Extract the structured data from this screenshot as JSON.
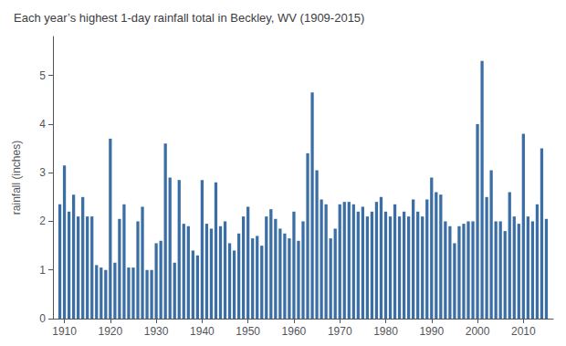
{
  "chart_data": {
    "type": "bar",
    "title": "Each year’s highest 1-day rainfall total in Beckley, WV (1909-2015)",
    "ylabel": "rainfall (inches)",
    "x": [
      1909,
      1910,
      1911,
      1912,
      1913,
      1914,
      1915,
      1916,
      1917,
      1918,
      1919,
      1920,
      1921,
      1922,
      1923,
      1924,
      1925,
      1926,
      1927,
      1928,
      1929,
      1930,
      1931,
      1932,
      1933,
      1934,
      1935,
      1936,
      1937,
      1938,
      1939,
      1940,
      1941,
      1942,
      1943,
      1944,
      1945,
      1946,
      1947,
      1948,
      1949,
      1950,
      1951,
      1952,
      1953,
      1954,
      1955,
      1956,
      1957,
      1958,
      1959,
      1960,
      1961,
      1962,
      1963,
      1964,
      1965,
      1966,
      1967,
      1968,
      1969,
      1970,
      1971,
      1972,
      1973,
      1974,
      1975,
      1976,
      1977,
      1978,
      1979,
      1980,
      1981,
      1982,
      1983,
      1984,
      1985,
      1986,
      1987,
      1988,
      1989,
      1990,
      1991,
      1992,
      1993,
      1994,
      1995,
      1996,
      1997,
      1998,
      1999,
      2000,
      2001,
      2002,
      2003,
      2004,
      2005,
      2006,
      2007,
      2008,
      2009,
      2010,
      2011,
      2012,
      2013,
      2014,
      2015
    ],
    "values": [
      2.35,
      3.15,
      2.2,
      2.55,
      2.1,
      2.5,
      2.1,
      2.1,
      1.1,
      1.05,
      1.0,
      3.7,
      1.15,
      2.05,
      2.35,
      1.05,
      1.05,
      2.0,
      2.3,
      1.0,
      1.0,
      1.55,
      1.6,
      3.6,
      2.9,
      1.15,
      2.85,
      1.95,
      1.9,
      1.4,
      1.3,
      2.85,
      1.95,
      1.85,
      2.8,
      1.9,
      2.0,
      1.55,
      1.4,
      1.75,
      2.1,
      2.3,
      1.65,
      1.7,
      1.5,
      2.1,
      2.25,
      2.05,
      1.85,
      1.75,
      1.65,
      2.2,
      1.6,
      2.0,
      3.4,
      4.65,
      3.05,
      2.45,
      2.35,
      1.65,
      1.85,
      2.35,
      2.4,
      2.4,
      2.35,
      2.2,
      2.3,
      2.1,
      2.2,
      2.4,
      2.5,
      2.2,
      2.1,
      2.35,
      2.1,
      2.2,
      2.1,
      2.45,
      2.2,
      2.1,
      2.45,
      2.9,
      2.6,
      2.55,
      2.0,
      1.9,
      1.55,
      1.9,
      1.95,
      2.0,
      2.0,
      4.0,
      5.3,
      2.5,
      3.05,
      2.0,
      2.0,
      1.8,
      2.6,
      2.1,
      1.95,
      3.8,
      2.1,
      2.0,
      2.35,
      3.5,
      2.05
    ],
    "color": "#3a6ea5",
    "xlim": [
      1907.5,
      2016.5
    ],
    "xticks": [
      1910,
      1920,
      1930,
      1940,
      1950,
      1960,
      1970,
      1980,
      1990,
      2000,
      2010
    ],
    "ylim": [
      0,
      5.8
    ],
    "yticks": [
      0,
      1,
      2,
      3,
      4,
      5
    ],
    "grid": false
  }
}
